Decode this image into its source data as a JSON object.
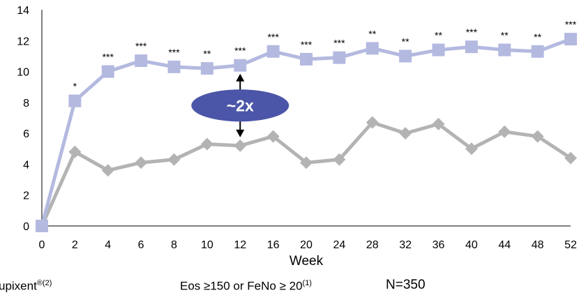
{
  "chart_data": {
    "type": "line",
    "xlabel": "Week",
    "ylabel": "",
    "ylim": [
      0,
      14
    ],
    "yticks": [
      0,
      2,
      4,
      6,
      8,
      10,
      12,
      14
    ],
    "categories": [
      "0",
      "2",
      "4",
      "6",
      "8",
      "10",
      "12",
      "16",
      "20",
      "24",
      "28",
      "32",
      "36",
      "40",
      "44",
      "48",
      "52"
    ],
    "grid": false,
    "series": [
      {
        "color": "#b4b9e0",
        "marker": "square",
        "values": [
          0,
          8.1,
          10.0,
          10.7,
          10.3,
          10.2,
          10.4,
          11.3,
          10.8,
          10.9,
          11.5,
          11.0,
          11.4,
          11.6,
          11.4,
          11.3,
          12.1
        ],
        "significance": [
          "",
          "*",
          "***",
          "***",
          "***",
          "**",
          "***",
          "***",
          "***",
          "***",
          "**",
          "**",
          "**",
          "***",
          "**",
          "**",
          "***"
        ]
      },
      {
        "color": "#b3b3b3",
        "marker": "diamond",
        "values": [
          0,
          4.8,
          3.6,
          4.1,
          4.3,
          5.3,
          5.2,
          5.8,
          4.1,
          4.3,
          6.7,
          6.0,
          6.6,
          5.0,
          6.1,
          5.8,
          4.4
        ]
      }
    ],
    "annotation": {
      "label": "~2x",
      "color": "#4b56a8",
      "at_category": "12",
      "from_value": 10.4,
      "to_value": 5.2
    }
  },
  "footer": {
    "drug_label": "upixent",
    "drug_reg": "®(2)",
    "population_label": "Eos ≥150 or FeNo ≥ 20",
    "population_ref": "(1)",
    "n_label": "N=350"
  }
}
